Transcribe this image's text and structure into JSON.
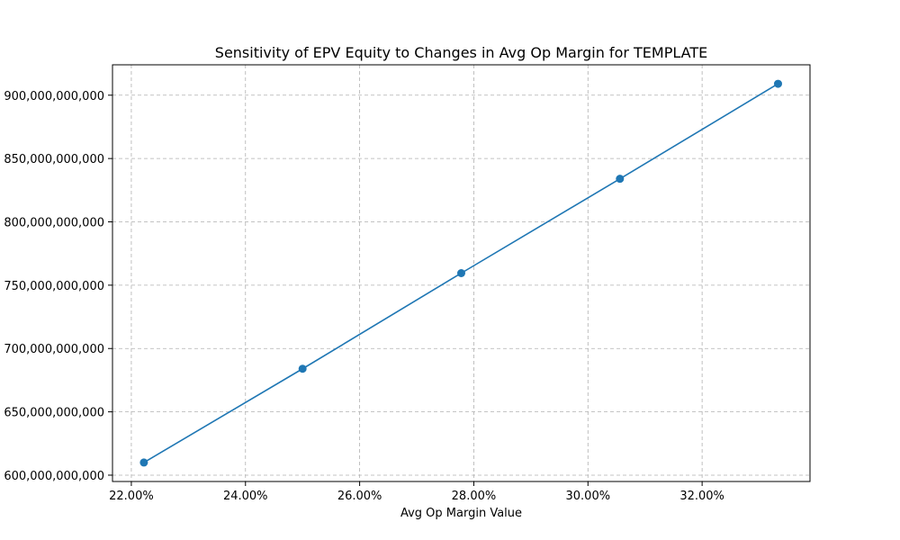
{
  "chart_data": {
    "type": "line",
    "title": "Sensitivity of EPV Equity to Changes in Avg Op Margin for TEMPLATE",
    "xlabel": "Avg Op Margin Value",
    "ylabel": "",
    "x": [
      0.2222,
      0.25,
      0.2778,
      0.3056,
      0.3333
    ],
    "series": [
      {
        "values": [
          610000000000,
          684000000000,
          759500000000,
          834000000000,
          909000000000
        ],
        "color": "#1f77b4",
        "marker": "circle"
      }
    ],
    "xlim": [
      0.2167,
      0.3389
    ],
    "ylim": [
      595000000000,
      924000000000
    ],
    "x_ticks": [
      0.22,
      0.24,
      0.26,
      0.28,
      0.3,
      0.32
    ],
    "x_tick_labels": [
      "22.00%",
      "24.00%",
      "26.00%",
      "28.00%",
      "30.00%",
      "32.00%"
    ],
    "y_ticks": [
      600000000000,
      650000000000,
      700000000000,
      750000000000,
      800000000000,
      850000000000,
      900000000000
    ],
    "y_tick_labels": [
      "600,000,000,000",
      "650,000,000,000",
      "700,000,000,000",
      "750,000,000,000",
      "800,000,000,000",
      "850,000,000,000",
      "900,000,000,000"
    ],
    "grid": true,
    "grid_style": "dashed",
    "legend": "none"
  }
}
